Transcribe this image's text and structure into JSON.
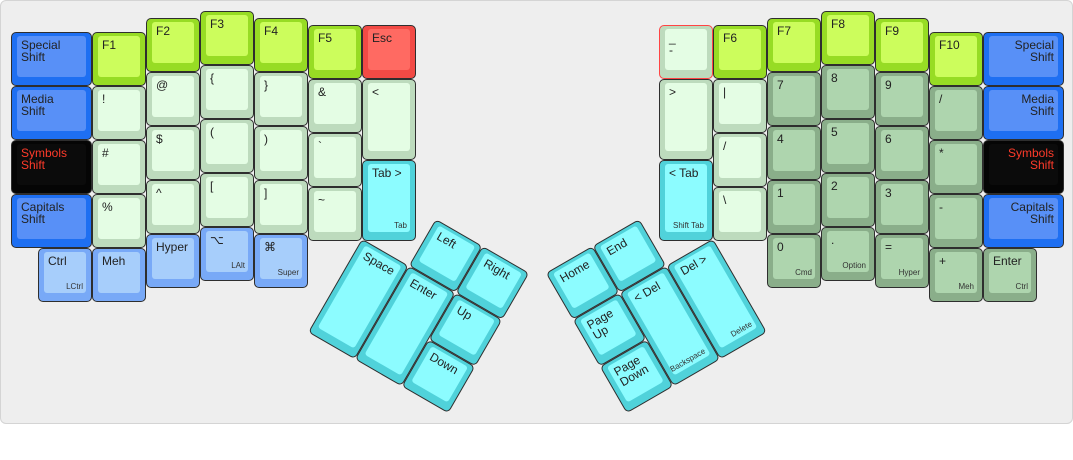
{
  "left": {
    "keys": [
      {
        "label": "Special\nShift",
        "color": "blue"
      },
      {
        "label": "Media\nShift",
        "color": "blue"
      },
      {
        "label": "Symbols\nShift",
        "color": "black"
      },
      {
        "label": "Capitals\nShift",
        "color": "blue"
      },
      {
        "label": "Ctrl",
        "sub": "LCtrl",
        "color": "lblue"
      },
      {
        "label": "F1",
        "color": "lime"
      },
      {
        "label": "!",
        "color": "pale"
      },
      {
        "label": "#",
        "color": "pale"
      },
      {
        "label": "%",
        "color": "pale"
      },
      {
        "label": "Meh",
        "color": "lblue"
      },
      {
        "label": "F2",
        "color": "lime"
      },
      {
        "label": "@",
        "color": "pale"
      },
      {
        "label": "$",
        "color": "pale"
      },
      {
        "label": "^",
        "color": "pale"
      },
      {
        "label": "Hyper",
        "color": "lblue"
      },
      {
        "label": "F3",
        "color": "lime"
      },
      {
        "label": "{",
        "color": "pale"
      },
      {
        "label": "(",
        "color": "pale"
      },
      {
        "label": "[",
        "color": "pale"
      },
      {
        "label": "⌥",
        "sub": "LAlt",
        "color": "lblue"
      },
      {
        "label": "F4",
        "color": "lime"
      },
      {
        "label": "}",
        "color": "pale"
      },
      {
        "label": ")",
        "color": "pale"
      },
      {
        "label": "]",
        "color": "pale"
      },
      {
        "label": "⌘",
        "sub": "Super",
        "color": "lblue"
      },
      {
        "label": "F5",
        "color": "lime"
      },
      {
        "label": "&",
        "color": "pale"
      },
      {
        "label": "`",
        "color": "pale"
      },
      {
        "label": "~",
        "color": "pale"
      },
      {
        "label": "Esc",
        "color": "red"
      },
      {
        "label": "<",
        "color": "pale"
      },
      {
        "label": "Tab >",
        "sub": "Tab",
        "color": "cyan"
      }
    ],
    "thumbs": [
      {
        "label": "Left",
        "color": "cyan"
      },
      {
        "label": "Right",
        "color": "cyan"
      },
      {
        "label": "Space",
        "color": "cyan"
      },
      {
        "label": "Enter",
        "color": "cyan"
      },
      {
        "label": "Up",
        "color": "cyan"
      },
      {
        "label": "Down",
        "color": "cyan"
      }
    ]
  },
  "right": {
    "keys": [
      {
        "label": "_\n-",
        "color": "pale-red"
      },
      {
        "label": ">",
        "color": "pale"
      },
      {
        "label": "< Tab",
        "sub": "Shift Tab",
        "color": "cyan"
      },
      {
        "label": "F6",
        "color": "lime"
      },
      {
        "label": "|",
        "color": "pale"
      },
      {
        "label": "/",
        "color": "pale"
      },
      {
        "label": "\\",
        "color": "pale"
      },
      {
        "label": "F7",
        "color": "lime"
      },
      {
        "label": "7",
        "color": "dgreen"
      },
      {
        "label": "4",
        "color": "dgreen"
      },
      {
        "label": "1",
        "color": "dgreen"
      },
      {
        "label": "0",
        "sub": "Cmd",
        "color": "dgreen"
      },
      {
        "label": "F8",
        "color": "lime"
      },
      {
        "label": "8",
        "color": "dgreen"
      },
      {
        "label": "5",
        "color": "dgreen"
      },
      {
        "label": "2",
        "color": "dgreen"
      },
      {
        "label": ".",
        "sub": "Option",
        "color": "dgreen"
      },
      {
        "label": "F9",
        "color": "lime"
      },
      {
        "label": "9",
        "color": "dgreen"
      },
      {
        "label": "6",
        "color": "dgreen"
      },
      {
        "label": "3",
        "color": "dgreen"
      },
      {
        "label": "=",
        "sub": "Hyper",
        "color": "dgreen"
      },
      {
        "label": "F10",
        "color": "lime"
      },
      {
        "label": "/",
        "color": "dgreen"
      },
      {
        "label": "*",
        "color": "dgreen"
      },
      {
        "label": "-",
        "color": "dgreen"
      },
      {
        "label": "+",
        "sub": "Meh",
        "color": "dgreen"
      },
      {
        "label": "Special\nShift",
        "color": "blue",
        "align": "right"
      },
      {
        "label": "Media\nShift",
        "color": "blue",
        "align": "right"
      },
      {
        "label": "Symbols\nShift",
        "color": "black",
        "align": "right"
      },
      {
        "label": "Capitals\nShift",
        "color": "blue",
        "align": "right"
      },
      {
        "label": "Enter",
        "sub": "Ctrl",
        "color": "dgreen"
      }
    ],
    "thumbs": [
      {
        "label": "Home",
        "color": "cyan"
      },
      {
        "label": "End",
        "color": "cyan"
      },
      {
        "label": "Page\nUp",
        "color": "cyan"
      },
      {
        "label": "Page\nDown",
        "color": "cyan"
      },
      {
        "label": "< Del",
        "sub": "Backspace",
        "color": "cyan"
      },
      {
        "label": "Del >",
        "sub": "Delete",
        "color": "cyan"
      }
    ]
  },
  "colors": {
    "blue": "#1e6ff2",
    "black": "#050505",
    "lime": "#ccfd5c",
    "red": "#ff6a62",
    "pale": "#e4fde4",
    "light_blue": "#a7cefb",
    "cyan": "#8cfcff",
    "dark_green": "#aed5ae",
    "shift_text_red": "#ff3b2a"
  }
}
